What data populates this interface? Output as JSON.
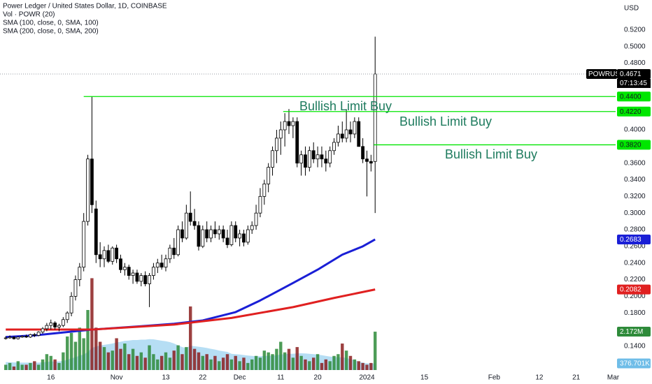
{
  "chart_data": {
    "type": "candlestick",
    "title": "Power Ledger / United States Dollar, 1D, COINBASE",
    "currency": "USD",
    "symbol": "POWRUSD",
    "countdown": "07:13:45",
    "up_color": "#ffffff",
    "down_color": "#000000",
    "x": [
      -11,
      -10,
      -9,
      -8,
      -7,
      -6,
      -5,
      -4,
      -3,
      -2,
      -1,
      0,
      1,
      2,
      3,
      4,
      5,
      6,
      7,
      8,
      9,
      10,
      11,
      12,
      13,
      14,
      15,
      16,
      17,
      18,
      19,
      20,
      21,
      22,
      23,
      24,
      25,
      26,
      27,
      28,
      29,
      30,
      31,
      32,
      33,
      34,
      35,
      36,
      37,
      38,
      39,
      40,
      41,
      42,
      43,
      44,
      45,
      46,
      47,
      48,
      49,
      50,
      51,
      52,
      53,
      54,
      55,
      56,
      57,
      58,
      59,
      60,
      61,
      62,
      63,
      64,
      65,
      66,
      67,
      68,
      69,
      70,
      71,
      72,
      73,
      74,
      75,
      76,
      77,
      78,
      79
    ],
    "open": [
      0.15,
      0.15,
      0.151,
      0.149,
      0.151,
      0.152,
      0.151,
      0.154,
      0.153,
      0.157,
      0.161,
      0.165,
      0.168,
      0.163,
      0.165,
      0.172,
      0.18,
      0.2,
      0.22,
      0.235,
      0.29,
      0.365,
      0.305,
      0.25,
      0.245,
      0.255,
      0.242,
      0.258,
      0.245,
      0.232,
      0.235,
      0.225,
      0.228,
      0.218,
      0.225,
      0.215,
      0.225,
      0.235,
      0.24,
      0.235,
      0.245,
      0.258,
      0.25,
      0.28,
      0.27,
      0.3,
      0.29,
      0.285,
      0.26,
      0.28,
      0.27,
      0.28,
      0.275,
      0.28,
      0.27,
      0.262,
      0.285,
      0.27,
      0.275,
      0.265,
      0.28,
      0.285,
      0.3,
      0.32,
      0.335,
      0.355,
      0.375,
      0.39,
      0.4,
      0.41,
      0.405,
      0.41,
      0.36,
      0.37,
      0.355,
      0.375,
      0.365,
      0.37,
      0.365,
      0.36,
      0.375,
      0.385,
      0.395,
      0.39,
      0.4,
      0.395,
      0.41,
      0.38,
      0.365,
      0.362,
      0.362
    ],
    "high": [
      0.152,
      0.153,
      0.152,
      0.152,
      0.153,
      0.154,
      0.155,
      0.156,
      0.158,
      0.163,
      0.168,
      0.172,
      0.17,
      0.167,
      0.175,
      0.182,
      0.205,
      0.225,
      0.24,
      0.3,
      0.37,
      0.44,
      0.315,
      0.265,
      0.26,
      0.262,
      0.26,
      0.262,
      0.25,
      0.24,
      0.238,
      0.232,
      0.232,
      0.228,
      0.23,
      0.228,
      0.24,
      0.245,
      0.25,
      0.25,
      0.262,
      0.27,
      0.285,
      0.29,
      0.31,
      0.326,
      0.305,
      0.29,
      0.285,
      0.29,
      0.285,
      0.29,
      0.285,
      0.285,
      0.28,
      0.29,
      0.29,
      0.28,
      0.28,
      0.285,
      0.29,
      0.31,
      0.33,
      0.34,
      0.36,
      0.38,
      0.4,
      0.41,
      0.42,
      0.425,
      0.415,
      0.415,
      0.375,
      0.38,
      0.38,
      0.385,
      0.38,
      0.38,
      0.375,
      0.38,
      0.39,
      0.405,
      0.41,
      0.425,
      0.41,
      0.415,
      0.415,
      0.39,
      0.375,
      0.37,
      0.512
    ],
    "low": [
      0.148,
      0.149,
      0.148,
      0.148,
      0.15,
      0.15,
      0.15,
      0.151,
      0.152,
      0.155,
      0.158,
      0.16,
      0.16,
      0.158,
      0.163,
      0.168,
      0.176,
      0.195,
      0.212,
      0.23,
      0.285,
      0.3,
      0.24,
      0.235,
      0.235,
      0.24,
      0.238,
      0.24,
      0.228,
      0.225,
      0.22,
      0.215,
      0.215,
      0.212,
      0.212,
      0.187,
      0.22,
      0.228,
      0.232,
      0.23,
      0.24,
      0.245,
      0.248,
      0.265,
      0.268,
      0.285,
      0.28,
      0.255,
      0.258,
      0.265,
      0.265,
      0.27,
      0.268,
      0.265,
      0.258,
      0.26,
      0.265,
      0.26,
      0.26,
      0.262,
      0.275,
      0.28,
      0.295,
      0.31,
      0.325,
      0.345,
      0.36,
      0.37,
      0.38,
      0.395,
      0.39,
      0.355,
      0.345,
      0.345,
      0.35,
      0.36,
      0.355,
      0.355,
      0.35,
      0.355,
      0.37,
      0.38,
      0.385,
      0.385,
      0.385,
      0.39,
      0.38,
      0.36,
      0.32,
      0.35,
      0.3
    ],
    "close": [
      0.15,
      0.151,
      0.149,
      0.151,
      0.152,
      0.151,
      0.154,
      0.153,
      0.157,
      0.161,
      0.165,
      0.168,
      0.163,
      0.165,
      0.172,
      0.18,
      0.2,
      0.22,
      0.235,
      0.29,
      0.365,
      0.31,
      0.25,
      0.245,
      0.255,
      0.242,
      0.258,
      0.245,
      0.232,
      0.235,
      0.225,
      0.228,
      0.218,
      0.225,
      0.215,
      0.225,
      0.235,
      0.24,
      0.235,
      0.245,
      0.258,
      0.25,
      0.28,
      0.27,
      0.3,
      0.29,
      0.285,
      0.26,
      0.28,
      0.27,
      0.28,
      0.275,
      0.28,
      0.27,
      0.262,
      0.285,
      0.27,
      0.275,
      0.265,
      0.28,
      0.285,
      0.3,
      0.32,
      0.335,
      0.355,
      0.375,
      0.39,
      0.4,
      0.41,
      0.405,
      0.41,
      0.36,
      0.37,
      0.355,
      0.375,
      0.365,
      0.37,
      0.365,
      0.36,
      0.375,
      0.385,
      0.395,
      0.39,
      0.4,
      0.395,
      0.41,
      0.38,
      0.365,
      0.362,
      0.36,
      0.4671
    ],
    "xlim": [
      -12.4,
      137.6
    ],
    "xticks": [
      {
        "value": 0,
        "label": "16"
      },
      {
        "value": 16,
        "label": "Nov"
      },
      {
        "value": 28,
        "label": "13"
      },
      {
        "value": 37,
        "label": "22"
      },
      {
        "value": 46,
        "label": "Dec"
      },
      {
        "value": 56,
        "label": "11"
      },
      {
        "value": 65,
        "label": "20"
      },
      {
        "value": 77,
        "label": "2024"
      },
      {
        "value": 91,
        "label": "15"
      },
      {
        "value": 108,
        "label": "Feb"
      },
      {
        "value": 119,
        "label": "12"
      },
      {
        "value": 128,
        "label": "21"
      },
      {
        "value": 137,
        "label": "Mar"
      }
    ],
    "ylim": [
      0.1114,
      0.556
    ],
    "yticks": [
      {
        "value": 0.52,
        "label": "0.5200"
      },
      {
        "value": 0.5,
        "label": "0.5000"
      },
      {
        "value": 0.48,
        "label": "0.4800"
      },
      {
        "value": 0.4,
        "label": "0.4000"
      },
      {
        "value": 0.36,
        "label": "0.3600"
      },
      {
        "value": 0.34,
        "label": "0.3400"
      },
      {
        "value": 0.32,
        "label": "0.3200"
      },
      {
        "value": 0.3,
        "label": "0.3000"
      },
      {
        "value": 0.28,
        "label": "0.2800"
      },
      {
        "value": 0.26,
        "label": "0.2600"
      },
      {
        "value": 0.24,
        "label": "0.2400"
      },
      {
        "value": 0.22,
        "label": "0.2200"
      },
      {
        "value": 0.2,
        "label": "0.2000"
      },
      {
        "value": 0.18,
        "label": "0.1800"
      },
      {
        "value": 0.14,
        "label": "0.1400"
      }
    ],
    "volume": {
      "name": "Vol · POWR (20)",
      "up_color": "#2e8b3a",
      "down_color": "#8b1e1e",
      "ma_color": "#a9d8f2",
      "ylim": [
        0,
        20.95
      ],
      "values": [
        0.3,
        0.4,
        0.2,
        0.5,
        0.3,
        0.3,
        0.4,
        0.5,
        0.3,
        0.6,
        0.9,
        0.8,
        0.6,
        0.4,
        1.0,
        1.9,
        2.1,
        1.6,
        2.4,
        1.8,
        3.4,
        5.2,
        2.4,
        1.6,
        1.3,
        1.0,
        1.1,
        1.8,
        1.2,
        1.5,
        0.9,
        1.2,
        0.8,
        1.0,
        0.7,
        1.4,
        0.9,
        0.6,
        0.8,
        1.0,
        0.7,
        1.1,
        1.4,
        0.9,
        1.3,
        3.6,
        1.2,
        1.0,
        0.8,
        0.9,
        0.6,
        0.8,
        0.5,
        0.7,
        0.9,
        0.6,
        0.8,
        0.5,
        0.7,
        0.4,
        0.6,
        0.8,
        0.7,
        1.1,
        1.0,
        0.9,
        1.2,
        1.6,
        1.0,
        1.2,
        0.7,
        1.3,
        0.8,
        0.6,
        0.5,
        0.7,
        0.9,
        0.4,
        0.6,
        0.5,
        0.8,
        0.9,
        1.5,
        1.1,
        0.8,
        0.6,
        0.5,
        0.4,
        0.3,
        0.4,
        2.172
      ],
      "last_label": "2.172M",
      "ma_values": [
        0.45,
        0.44,
        0.43,
        0.43,
        0.42,
        0.42,
        0.42,
        0.43,
        0.42,
        0.44,
        0.46,
        0.48,
        0.49,
        0.49,
        0.52,
        0.58,
        0.66,
        0.72,
        0.82,
        0.88,
        1.02,
        1.25,
        1.33,
        1.39,
        1.43,
        1.46,
        1.5,
        1.56,
        1.6,
        1.65,
        1.67,
        1.7,
        1.7,
        1.72,
        1.72,
        1.75,
        1.74,
        1.7,
        1.66,
        1.63,
        1.58,
        1.5,
        1.4,
        1.3,
        1.25,
        1.38,
        1.35,
        1.32,
        1.29,
        1.25,
        1.2,
        1.16,
        1.1,
        1.06,
        1.03,
        0.92,
        0.9,
        0.88,
        0.85,
        0.82,
        0.8,
        0.78,
        0.78,
        0.8,
        0.8,
        0.82,
        0.84,
        0.88,
        0.9,
        0.92,
        0.92,
        0.95,
        0.95,
        0.94,
        0.92,
        0.9,
        0.88,
        0.84,
        0.8,
        0.76,
        0.74,
        0.72,
        0.72,
        0.68,
        0.62,
        0.55,
        0.48,
        0.42,
        0.38,
        0.37,
        0.376701
      ],
      "ma_last_label": "376.701K"
    },
    "sma": [
      {
        "name": "SMA (100, close, 0, SMA, 100)",
        "color": "#1a1fd6",
        "x": [
          -11,
          -4,
          10,
          22,
          30,
          37,
          45,
          51,
          59,
          65,
          71,
          76,
          79
        ],
        "values": [
          0.151,
          0.153,
          0.16,
          0.164,
          0.167,
          0.171,
          0.181,
          0.195,
          0.216,
          0.232,
          0.25,
          0.26,
          0.2683
        ]
      },
      {
        "name": "SMA (200, close, 0, SMA, 200)",
        "color": "#e02020",
        "x": [
          -11,
          10,
          30,
          44,
          59,
          69,
          79
        ],
        "values": [
          0.16,
          0.16,
          0.166,
          0.174,
          0.187,
          0.198,
          0.2082
        ]
      }
    ],
    "level_color": "#00e600",
    "annotation_color": "#1e7b5e",
    "levels": [
      {
        "value": 0.44,
        "label": "0.4400",
        "from_x": 8,
        "text": "Bullish Limit Buy"
      },
      {
        "value": 0.422,
        "label": "0.4220",
        "from_x": 56.6,
        "text": "Bullish Limit Buy"
      },
      {
        "value": 0.382,
        "label": "0.3820",
        "from_x": 78.7,
        "text": "Bullish Limit Buy"
      }
    ]
  }
}
